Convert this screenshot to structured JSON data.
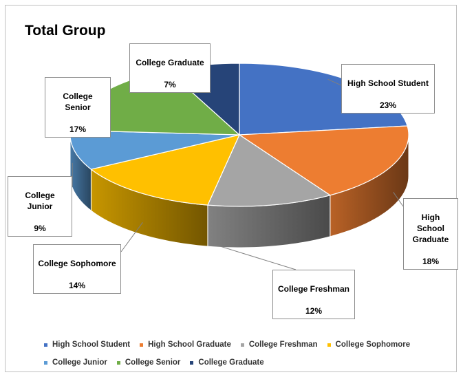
{
  "chart_data": {
    "type": "pie",
    "title": "Total Group",
    "three_d": true,
    "legend_position": "bottom",
    "slices": [
      {
        "name": "High School Student",
        "label": "High School Student",
        "value": 23,
        "display": "23%",
        "color": "#4472c4"
      },
      {
        "name": "High School Graduate",
        "label": "High School\nGraduate",
        "value": 18,
        "display": "18%",
        "color": "#ed7d31"
      },
      {
        "name": "College Freshman",
        "label": "College Freshman",
        "value": 12,
        "display": "12%",
        "color": "#a5a5a5"
      },
      {
        "name": "College Sophomore",
        "label": "College Sophomore",
        "value": 14,
        "display": "14%",
        "color": "#ffc000"
      },
      {
        "name": "College Junior",
        "label": "College Junior",
        "value": 9,
        "display": "9%",
        "color": "#5b9bd5"
      },
      {
        "name": "College Senior",
        "label": "College Senior",
        "value": 17,
        "display": "17%",
        "color": "#70ad47"
      },
      {
        "name": "College Graduate",
        "label": "College Graduate",
        "value": 7,
        "display": "7%",
        "color": "#264478"
      }
    ]
  }
}
